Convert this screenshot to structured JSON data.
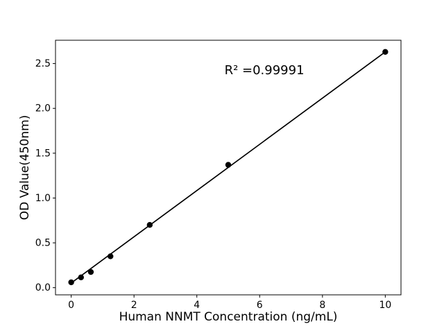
{
  "figure": {
    "background_color": "#ffffff",
    "foreground_color": "#000000"
  },
  "chart_data": {
    "type": "scatter",
    "title": "",
    "xlabel": "Human NNMT Concentration (ng/mL)",
    "ylabel": "OD Value(450nm)",
    "x": [
      0,
      0.3125,
      0.625,
      1.25,
      2.5,
      5,
      10
    ],
    "y": [
      0.06,
      0.115,
      0.175,
      0.35,
      0.7,
      1.37,
      2.63
    ],
    "xlim": [
      -0.5,
      10.5
    ],
    "ylim": [
      -0.08,
      2.76
    ],
    "xticks": [
      0,
      2,
      4,
      6,
      8,
      10
    ],
    "xtick_labels": [
      "0",
      "2",
      "4",
      "6",
      "8",
      "10"
    ],
    "yticks": [
      0.0,
      0.5,
      1.0,
      1.5,
      2.0,
      2.5
    ],
    "ytick_labels": [
      "0.0",
      "0.5",
      "1.0",
      "1.5",
      "2.0",
      "2.5"
    ],
    "fit_line": {
      "slope": 0.2578,
      "intercept": 0.052,
      "x_start": 0,
      "x_end": 10
    },
    "annotation": {
      "text": "R² =0.99991",
      "x": 6.15,
      "y": 2.38
    },
    "marker_color": "#000000",
    "line_color": "#000000",
    "grid": false,
    "legend_position": "none"
  }
}
